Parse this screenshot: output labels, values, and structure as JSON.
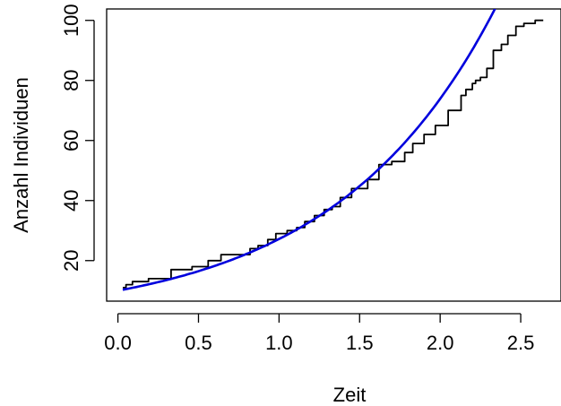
{
  "chart_data": {
    "type": "line",
    "title": "",
    "xlabel": "Zeit",
    "ylabel": "Anzahl Individuen",
    "xlim": [
      -0.07,
      2.75
    ],
    "ylim": [
      6.5,
      103.8
    ],
    "x_ticks": [
      0.0,
      0.5,
      1.0,
      1.5,
      2.0,
      2.5
    ],
    "x_tick_labels": [
      "0.0",
      "0.5",
      "1.0",
      "1.5",
      "2.0",
      "2.5"
    ],
    "y_ticks": [
      20,
      40,
      60,
      80,
      100
    ],
    "y_tick_labels": [
      "20",
      "40",
      "60",
      "80",
      "100"
    ],
    "grid": false,
    "series": [
      {
        "kind": "step",
        "color": "#000000",
        "x": [
          0.03,
          0.05,
          0.09,
          0.19,
          0.33,
          0.46,
          0.56,
          0.64,
          0.82,
          0.87,
          0.93,
          0.98,
          1.05,
          1.11,
          1.16,
          1.22,
          1.28,
          1.33,
          1.38,
          1.45,
          1.55,
          1.62,
          1.7,
          1.78,
          1.83,
          1.9,
          1.97,
          2.05,
          2.13,
          2.16,
          2.2,
          2.22,
          2.25,
          2.29,
          2.33,
          2.38,
          2.42,
          2.47,
          2.52,
          2.59,
          2.64
        ],
        "y": [
          11,
          12,
          13,
          14,
          17,
          18,
          20,
          22,
          24,
          25,
          27,
          29,
          30,
          31,
          33,
          35,
          37,
          38,
          41,
          44,
          47,
          52,
          53,
          56,
          59,
          62,
          65,
          70,
          75,
          77,
          79,
          80,
          81,
          84,
          90,
          92,
          95,
          98,
          99,
          100,
          100
        ]
      },
      {
        "kind": "curve",
        "color": "#0000dd",
        "formula": "10*exp(t)",
        "t_range": [
          0.03,
          2.36
        ]
      }
    ]
  }
}
